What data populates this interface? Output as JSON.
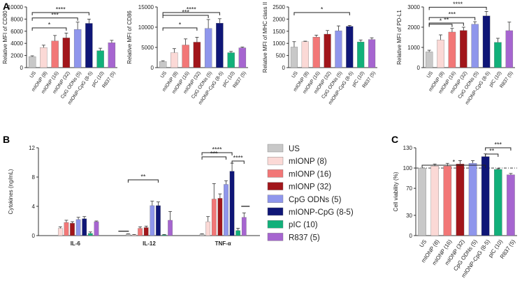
{
  "figure_labels": {
    "A": "A",
    "B": "B",
    "C": "C"
  },
  "chart_data": [
    {
      "id": "A1",
      "type": "bar",
      "title": "",
      "ylabel": "Relative MFI of CD80",
      "ylim": [
        0,
        10000
      ],
      "yticks": [
        0,
        2000,
        4000,
        6000,
        8000,
        10000
      ],
      "categories": [
        "US",
        "mIONP (8)",
        "mIONP (16)",
        "mIONP (32)",
        "CpG ODNs (5)",
        "mIONP-CpG (8-5)",
        "pIC (10)",
        "R837 (5)"
      ],
      "values": [
        1800,
        3300,
        4400,
        4900,
        6300,
        7300,
        2800,
        4100
      ],
      "errors": [
        150,
        400,
        900,
        800,
        1200,
        700,
        400,
        400
      ],
      "brackets": [
        {
          "from": 0,
          "to": 3,
          "label": "*"
        },
        {
          "from": 0,
          "to": 4,
          "label": "***"
        },
        {
          "from": 0,
          "to": 5,
          "label": "****"
        }
      ]
    },
    {
      "id": "A2",
      "type": "bar",
      "title": "",
      "ylabel": "Relative MFI of CD86",
      "ylim": [
        0,
        15000
      ],
      "yticks": [
        0,
        5000,
        10000,
        15000
      ],
      "categories": [
        "US",
        "mIONP (8)",
        "mIONP (16)",
        "mIONP (32)",
        "CpG ODNs (5)",
        "mIONP-CpG (8-5)",
        "pIC (10)",
        "R837 (5)"
      ],
      "values": [
        1500,
        3700,
        5600,
        6300,
        9700,
        11000,
        3700,
        4900
      ],
      "errors": [
        200,
        1000,
        1500,
        1200,
        2200,
        1100,
        300,
        200
      ],
      "brackets": [
        {
          "from": 0,
          "to": 3,
          "label": "*"
        },
        {
          "from": 0,
          "to": 4,
          "label": "***"
        },
        {
          "from": 0,
          "to": 5,
          "label": "****"
        }
      ]
    },
    {
      "id": "A3",
      "type": "bar",
      "title": "",
      "ylabel": "Relative MFI of MHC class II",
      "ylim": [
        0,
        2500
      ],
      "yticks": [
        0,
        500,
        1000,
        1500,
        2000,
        2500
      ],
      "categories": [
        "US",
        "mIONP (8)",
        "mIONP (16)",
        "mIONP (32)",
        "CpG ODNs (5)",
        "mIONP-CpG (8-5)",
        "pIC (10)",
        "R837 (5)"
      ],
      "values": [
        850,
        1070,
        1260,
        1380,
        1520,
        1700,
        1060,
        1160
      ],
      "errors": [
        220,
        20,
        80,
        150,
        200,
        40,
        80,
        70
      ],
      "brackets": [
        {
          "from": 0,
          "to": 5,
          "label": "*"
        }
      ]
    },
    {
      "id": "A4",
      "type": "bar",
      "title": "",
      "ylabel": "Relative MFI of PD-L1",
      "ylim": [
        0,
        3000
      ],
      "yticks": [
        0,
        1000,
        2000,
        3000
      ],
      "categories": [
        "US",
        "mIONP (8)",
        "mIONP (16)",
        "mIONP (32)",
        "CpG ODNs (5)",
        "mIONP-CpG (8-5)",
        "pIC (10)",
        "R837 (5)"
      ],
      "values": [
        780,
        1370,
        1760,
        1840,
        2150,
        2560,
        1250,
        1830
      ],
      "errors": [
        80,
        250,
        180,
        160,
        120,
        220,
        200,
        420
      ],
      "brackets": [
        {
          "from": 0,
          "to": 2,
          "label": "*"
        },
        {
          "from": 0,
          "to": 3,
          "label": "**"
        },
        {
          "from": 0,
          "to": 4,
          "label": "***"
        },
        {
          "from": 0,
          "to": 5,
          "label": "****"
        }
      ]
    },
    {
      "id": "B",
      "type": "bar",
      "title": "",
      "ylabel": "Cytokines (ng/mL)",
      "ylim": [
        0,
        12
      ],
      "yticks": [
        0,
        4,
        8,
        12
      ],
      "categories": [
        "IL-6",
        "IL-12",
        "TNF-α"
      ],
      "series": [
        {
          "name": "US",
          "values": [
            0.0,
            0.2,
            0.2
          ],
          "errors": [
            0.0,
            0.05,
            0.05
          ]
        },
        {
          "name": "mIONP (8)",
          "values": [
            1.0,
            0.1,
            1.9
          ],
          "errors": [
            0.2,
            0.05,
            0.7
          ]
        },
        {
          "name": "mIONP (16)",
          "values": [
            1.8,
            1.0,
            5.0
          ],
          "errors": [
            0.3,
            0.2,
            2.1
          ]
        },
        {
          "name": "mIONP (32)",
          "values": [
            1.7,
            1.1,
            5.1
          ],
          "errors": [
            0.2,
            0.2,
            0.6
          ]
        },
        {
          "name": "CpG ODNs (5)",
          "values": [
            2.2,
            4.1,
            7.0
          ],
          "errors": [
            0.3,
            0.6,
            0.5
          ]
        },
        {
          "name": "mIONP-CpG (8-5)",
          "values": [
            2.3,
            4.1,
            8.8
          ],
          "errors": [
            0.3,
            0.5,
            1.1
          ]
        },
        {
          "name": "pIC (10)",
          "values": [
            0.3,
            0.1,
            0.7
          ],
          "errors": [
            0.2,
            0.05,
            0.3
          ]
        },
        {
          "name": "R837 (5)",
          "values": [
            1.9,
            2.1,
            2.5
          ],
          "errors": [
            0.1,
            1.2,
            0.6
          ]
        }
      ],
      "brackets": [
        {
          "group": 1,
          "from": 0,
          "to": 5,
          "label": "**"
        },
        {
          "group": 2,
          "from": 0,
          "to": 4,
          "label": "***"
        },
        {
          "group": 2,
          "from": 0,
          "to": 5,
          "label": "****"
        },
        {
          "group": 2,
          "from": 5,
          "to": 7,
          "label": "****"
        }
      ]
    },
    {
      "id": "C",
      "type": "bar",
      "title": "",
      "ylabel": "Cell viability (%)",
      "ylim": [
        0,
        130
      ],
      "yticks": [
        0,
        30,
        70,
        100,
        130
      ],
      "categories": [
        "US",
        "mIONP (8)",
        "mIONP (16)",
        "mIONP (32)",
        "CpG ODNs (5)",
        "mIONP-CpG (8-5)",
        "pIC (10)",
        "R837 (5)"
      ],
      "values": [
        100,
        103,
        103,
        106,
        107,
        117,
        98,
        90
      ],
      "errors": [
        0,
        3,
        4,
        5,
        4,
        4,
        1,
        2
      ],
      "reference_line": 100,
      "brackets": [
        {
          "from": 0,
          "to": 5,
          "label": "*"
        },
        {
          "from": 5,
          "to": 6,
          "label": "**"
        },
        {
          "from": 5,
          "to": 7,
          "label": "***"
        }
      ]
    }
  ],
  "colors": {
    "US": "#c8c8c8",
    "mIONP (8)": "#fbd9d6",
    "mIONP (16)": "#f27777",
    "mIONP (32)": "#a1161b",
    "CpG ODNs (5)": "#8f96ec",
    "mIONP-CpG (8-5)": "#0f1677",
    "pIC (10)": "#12b07a",
    "R837 (5)": "#a665d0"
  }
}
